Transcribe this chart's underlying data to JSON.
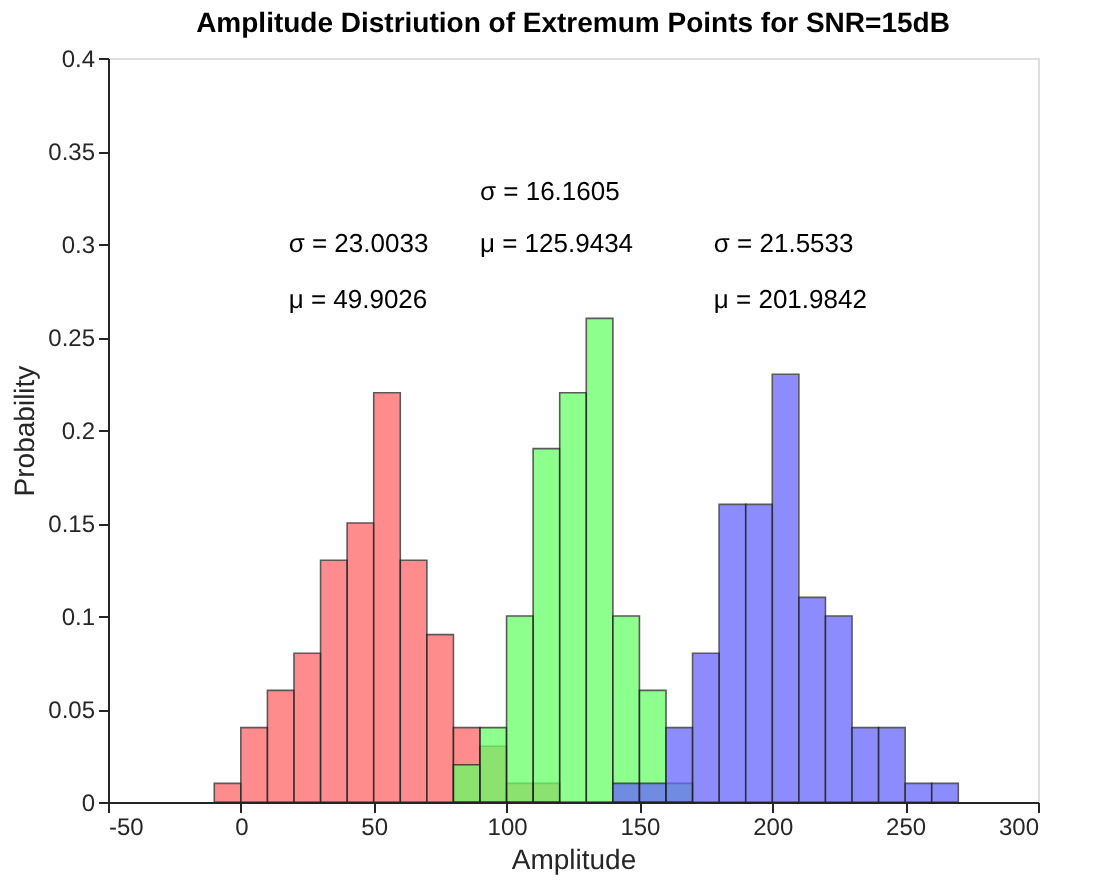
{
  "chart_data": {
    "type": "histogram",
    "title": "Amplitude Distriution of Extremum  Points for SNR=15dB",
    "xlabel": "Amplitude",
    "ylabel": "Probability",
    "bins": [
      -10,
      0,
      10,
      20,
      30,
      40,
      50,
      60,
      70,
      80,
      90,
      100,
      110,
      120,
      130,
      140,
      150,
      160,
      170,
      180,
      190,
      200,
      210,
      220,
      230,
      240,
      250,
      260,
      270
    ],
    "series": [
      {
        "color": "#ff6666",
        "values": [
          0.01,
          0.04,
          0.06,
          0.08,
          0.13,
          0.15,
          0.22,
          0.13,
          0.09,
          0.04,
          0.03,
          0.01,
          0.01,
          null,
          null,
          null,
          null,
          null,
          null,
          null,
          null,
          null,
          null,
          null,
          null,
          null,
          null,
          null
        ]
      },
      {
        "color": "#66ff66",
        "values": [
          null,
          null,
          null,
          null,
          null,
          null,
          null,
          null,
          null,
          0.02,
          0.04,
          0.1,
          0.19,
          0.22,
          0.26,
          0.1,
          0.06,
          0.01,
          null,
          null,
          null,
          null,
          null,
          null,
          null,
          null,
          null,
          null
        ]
      },
      {
        "color": "#6666ff",
        "values": [
          null,
          null,
          null,
          null,
          null,
          null,
          null,
          null,
          null,
          null,
          null,
          null,
          null,
          null,
          null,
          0.01,
          0.01,
          0.04,
          0.08,
          0.16,
          0.16,
          0.23,
          0.11,
          0.1,
          0.04,
          0.04,
          0.01,
          0.01
        ]
      }
    ],
    "annotations": [
      "σ =  23.0033",
      "μ =  49.9026",
      "σ =  16.1605",
      "μ =  125.9434",
      "σ =  21.5533",
      "μ =  201.9842"
    ],
    "xlim": [
      -50,
      300
    ],
    "xticks": [
      -50,
      0,
      50,
      100,
      150,
      200,
      250,
      300
    ],
    "ylim": [
      0,
      0.4
    ],
    "yticks": [
      0,
      0.05,
      0.1,
      0.15,
      0.2,
      0.25,
      0.3,
      0.35,
      0.4
    ],
    "grid": false,
    "legend": false
  }
}
